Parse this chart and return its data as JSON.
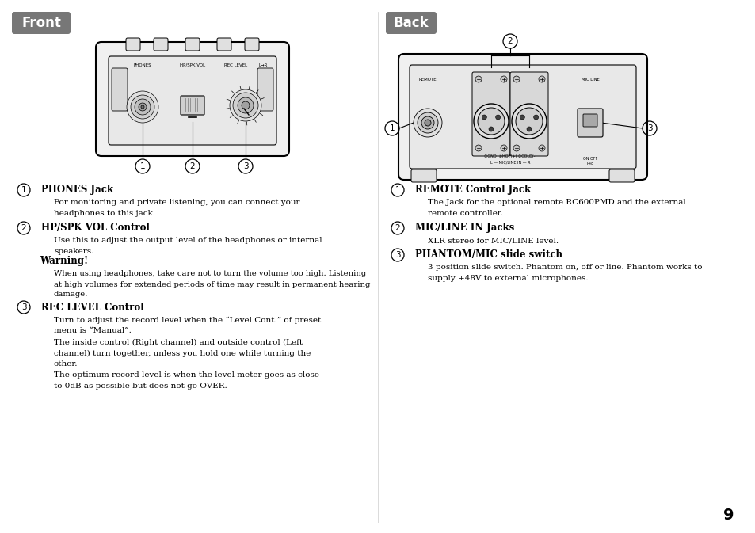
{
  "bg_color": "#ffffff",
  "left_label": "Front",
  "right_label": "Back",
  "label_bg": "#777777",
  "label_text_color": "#ffffff",
  "page_number": "9",
  "front_items": [
    {
      "num": "1",
      "title": "PHONES Jack",
      "lines": [
        "For monitoring and private listening, you can connect your",
        "headphones to this jack."
      ]
    },
    {
      "num": "2",
      "title": "HP/SPK VOL Control",
      "lines": [
        "Use this to adjust the output level of the headphones or internal",
        "speakers."
      ],
      "warning_title": "Warning!",
      "warning_lines": [
        "When using headphones, take care not to turn the volume too high. Listening",
        "at high volumes for extended periods of time may result in permanent hearing",
        "damage."
      ]
    },
    {
      "num": "3",
      "title": "REC LEVEL Control",
      "lines": [
        "Turn to adjust the record level when the “Level Cont.” of preset",
        "menu is “Manual”.",
        "The inside control (Right channel) and outside control (Left",
        "channel) turn together, unless you hold one while turning the",
        "other.",
        "The optimum record level is when the level meter goes as close",
        "to 0dB as possible but does not go OVER."
      ]
    }
  ],
  "back_items": [
    {
      "num": "1",
      "title": "REMOTE Control Jack",
      "lines": [
        "The Jack for the optional remote RC600PMD and the external",
        "remote controller."
      ]
    },
    {
      "num": "2",
      "title": "MIC/LINE IN Jacks",
      "lines": [
        "XLR stereo for MIC/LINE level."
      ]
    },
    {
      "num": "3",
      "title": "PHANTOM/MIC slide switch",
      "lines": [
        "3 position slide switch. Phantom on, off or line. Phantom works to",
        "supply +48V to external microphones."
      ]
    }
  ]
}
